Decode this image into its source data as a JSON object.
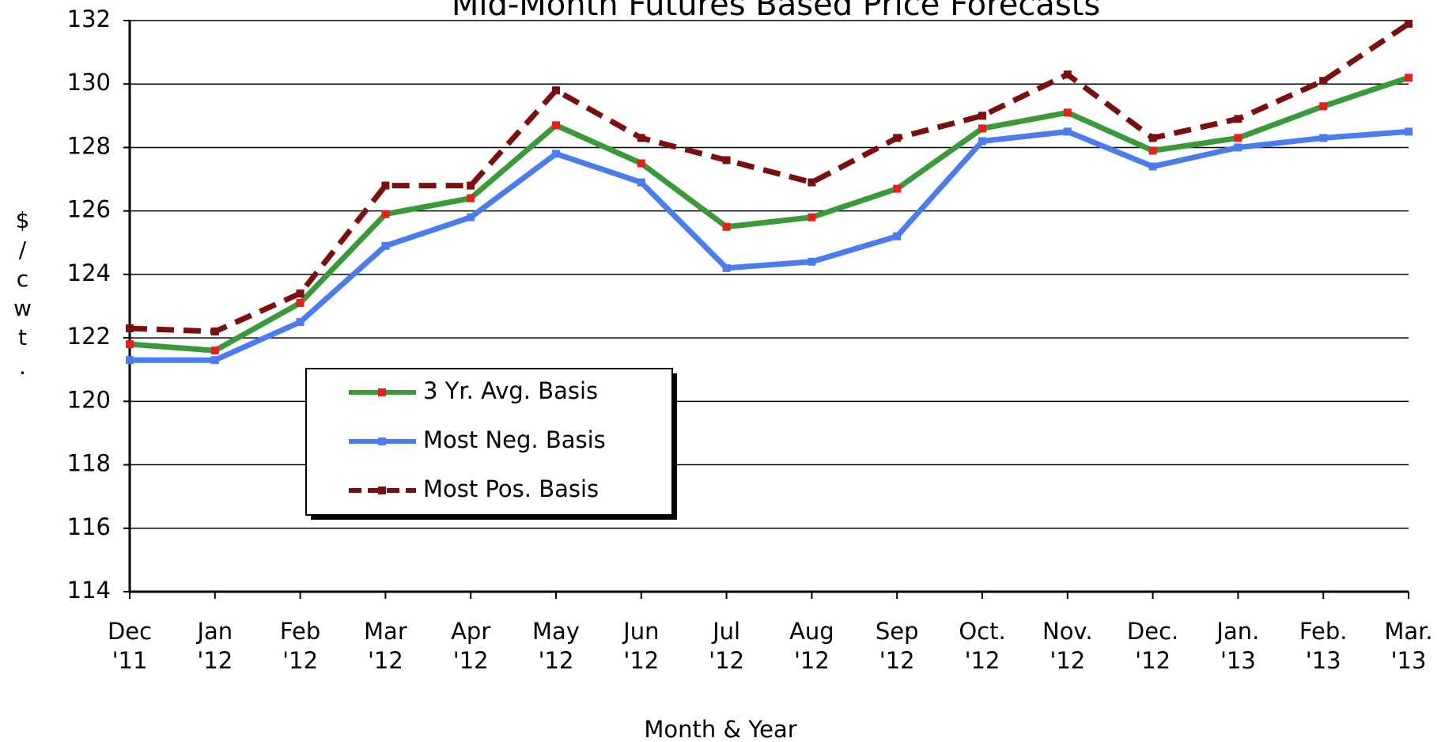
{
  "chart_data": {
    "type": "line",
    "title": "Mid-Month Futures Based Price Forecasts",
    "y_label": "$/cwt.",
    "x_label": "Month & Year",
    "categories": [
      "Dec\n'11",
      "Jan\n'12",
      "Feb\n'12",
      "Mar\n'12",
      "Apr\n'12",
      "May\n'12",
      "Jun\n'12",
      "Jul\n'12",
      "Aug\n'12",
      "Sep\n'12",
      "Oct.\n'12",
      "Nov.\n'12",
      "Dec.\n'12",
      "Jan.\n'13",
      "Feb.\n'13",
      "Mar.\n'13"
    ],
    "series": [
      {
        "name": "3 Yr. Avg. Basis",
        "color": "#3a9a3a",
        "marker_color": "#e8201a",
        "line_style": "solid",
        "values": [
          121.8,
          121.6,
          123.1,
          125.9,
          126.4,
          128.7,
          127.5,
          125.5,
          125.8,
          126.7,
          128.6,
          129.1,
          127.9,
          128.3,
          129.3,
          130.2
        ]
      },
      {
        "name": "Most Neg. Basis",
        "color": "#4a7cf0",
        "marker_color": "#4a7cf0",
        "line_style": "solid",
        "values": [
          121.3,
          121.3,
          122.5,
          124.9,
          125.8,
          127.8,
          126.9,
          124.2,
          124.4,
          125.2,
          128.2,
          128.5,
          127.4,
          128.0,
          128.3,
          128.5
        ]
      },
      {
        "name": "Most Pos. Basis",
        "color": "#7a0f0f",
        "marker_color": "#7a0f0f",
        "line_style": "dashed",
        "values": [
          122.3,
          122.2,
          123.4,
          126.8,
          126.8,
          129.8,
          128.3,
          127.6,
          126.9,
          128.3,
          129.0,
          130.3,
          128.3,
          128.9,
          130.1,
          131.9
        ]
      }
    ],
    "ylim": [
      114,
      132
    ],
    "yticks": [
      114,
      116,
      118,
      120,
      122,
      124,
      126,
      128,
      130,
      132
    ],
    "grid": true
  }
}
